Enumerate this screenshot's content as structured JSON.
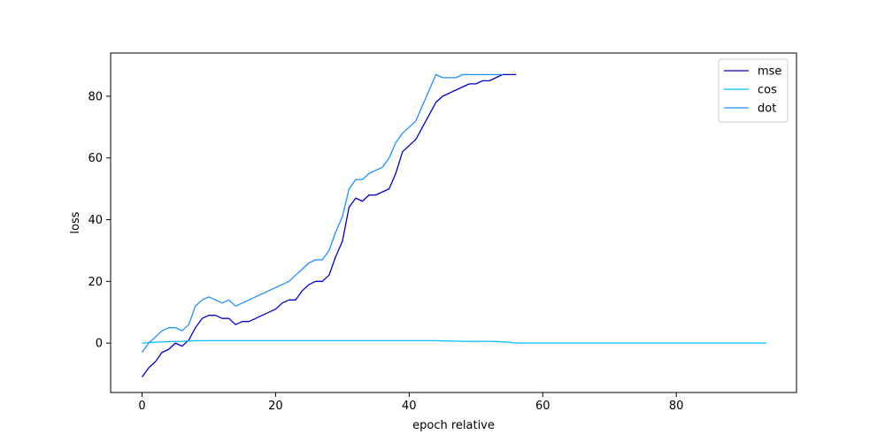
{
  "chart_data": {
    "type": "line",
    "title": "",
    "xlabel": "epoch relative",
    "ylabel": "loss",
    "xlim": [
      -4.7,
      98
    ],
    "ylim": [
      -16,
      94
    ],
    "xticks": [
      0,
      20,
      40,
      60,
      80
    ],
    "yticks": [
      0,
      20,
      40,
      60,
      80
    ],
    "grid": false,
    "legend": "upper-right",
    "series": [
      {
        "name": "mse",
        "color": "#0000cd",
        "x": [
          0,
          1,
          2,
          3,
          4,
          5,
          6,
          7,
          8,
          9,
          10,
          11,
          12,
          13,
          14,
          15,
          16,
          17,
          18,
          19,
          20,
          21,
          22,
          23,
          24,
          25,
          26,
          27,
          28,
          29,
          30,
          31,
          32,
          33,
          34,
          35,
          36,
          37,
          38,
          39,
          40,
          41,
          42,
          43,
          44,
          45,
          46,
          47,
          48,
          49,
          50,
          51,
          52,
          53,
          54,
          55,
          56
        ],
        "y": [
          -11,
          -8,
          -6,
          -3,
          -2,
          0,
          -1,
          1,
          5,
          8,
          9,
          9,
          8,
          8,
          6,
          7,
          7,
          8,
          9,
          10,
          11,
          13,
          14,
          14,
          17,
          19,
          20,
          20,
          22,
          28,
          33,
          44,
          47,
          46,
          48,
          48,
          49,
          50,
          55,
          62,
          64,
          66,
          70,
          74,
          78,
          80,
          81,
          82,
          83,
          84,
          84,
          85,
          85,
          86,
          87,
          87,
          87
        ]
      },
      {
        "name": "cos",
        "color": "#00bfff",
        "x": [
          0,
          2,
          4,
          6,
          8,
          10,
          12,
          15,
          20,
          24,
          28,
          32,
          36,
          40,
          44,
          48,
          52,
          54,
          55,
          56,
          60,
          70,
          80,
          90,
          93.5
        ],
        "y": [
          0,
          0.3,
          0.5,
          0.6,
          0.8,
          0.8,
          0.8,
          0.8,
          0.8,
          0.8,
          0.8,
          0.8,
          0.8,
          0.8,
          0.8,
          0.6,
          0.6,
          0.4,
          0.3,
          0,
          0,
          0,
          0,
          0,
          0
        ]
      },
      {
        "name": "dot",
        "color": "#1e90ff",
        "x": [
          0,
          1,
          2,
          3,
          4,
          5,
          6,
          7,
          8,
          9,
          10,
          11,
          12,
          13,
          14,
          15,
          16,
          17,
          18,
          19,
          20,
          21,
          22,
          23,
          24,
          25,
          26,
          27,
          28,
          29,
          30,
          31,
          32,
          33,
          34,
          35,
          36,
          37,
          38,
          39,
          40,
          41,
          42,
          43,
          44,
          45,
          46,
          47,
          48,
          49,
          50,
          51,
          52,
          53,
          54
        ],
        "y": [
          -3,
          0,
          2,
          4,
          5,
          5,
          4,
          6,
          12,
          14,
          15,
          14,
          13,
          14,
          12,
          13,
          14,
          15,
          16,
          17,
          18,
          19,
          20,
          22,
          24,
          26,
          27,
          27,
          30,
          36,
          41,
          50,
          53,
          53,
          55,
          56,
          57,
          60,
          65,
          68,
          70,
          72,
          77,
          82,
          87,
          86,
          86,
          86,
          87,
          87,
          87,
          87,
          87,
          87,
          87
        ]
      }
    ]
  }
}
